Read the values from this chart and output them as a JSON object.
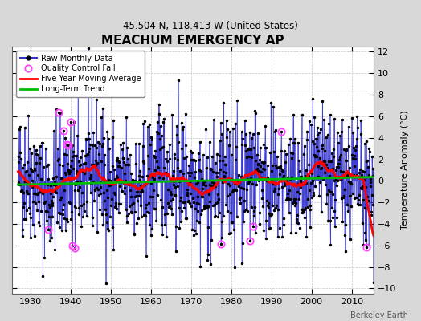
{
  "title": "MEACHUM EMERGENCY AP",
  "subtitle": "45.504 N, 118.413 W (United States)",
  "ylabel": "Temperature Anomaly (°C)",
  "credit": "Berkeley Earth",
  "xlim": [
    1925.5,
    2015.5
  ],
  "ylim": [
    -10.5,
    12.5
  ],
  "yticks": [
    -10,
    -8,
    -6,
    -4,
    -2,
    0,
    2,
    4,
    6,
    8,
    10,
    12
  ],
  "xticks": [
    1930,
    1940,
    1950,
    1960,
    1970,
    1980,
    1990,
    2000,
    2010
  ],
  "start_year": 1927.0,
  "end_year": 2015.5,
  "seed": 42,
  "background_color": "#d8d8d8",
  "plot_bg_color": "#ffffff",
  "raw_color": "#3333cc",
  "raw_dot_color": "#000000",
  "qc_color": "#ff44ff",
  "moving_avg_color": "#ff0000",
  "trend_color": "#00bb00",
  "noise_std": 2.8,
  "stem_alpha": 0.6,
  "stem_linewidth": 0.8,
  "figwidth": 5.24,
  "figheight": 4.0,
  "dpi": 100
}
